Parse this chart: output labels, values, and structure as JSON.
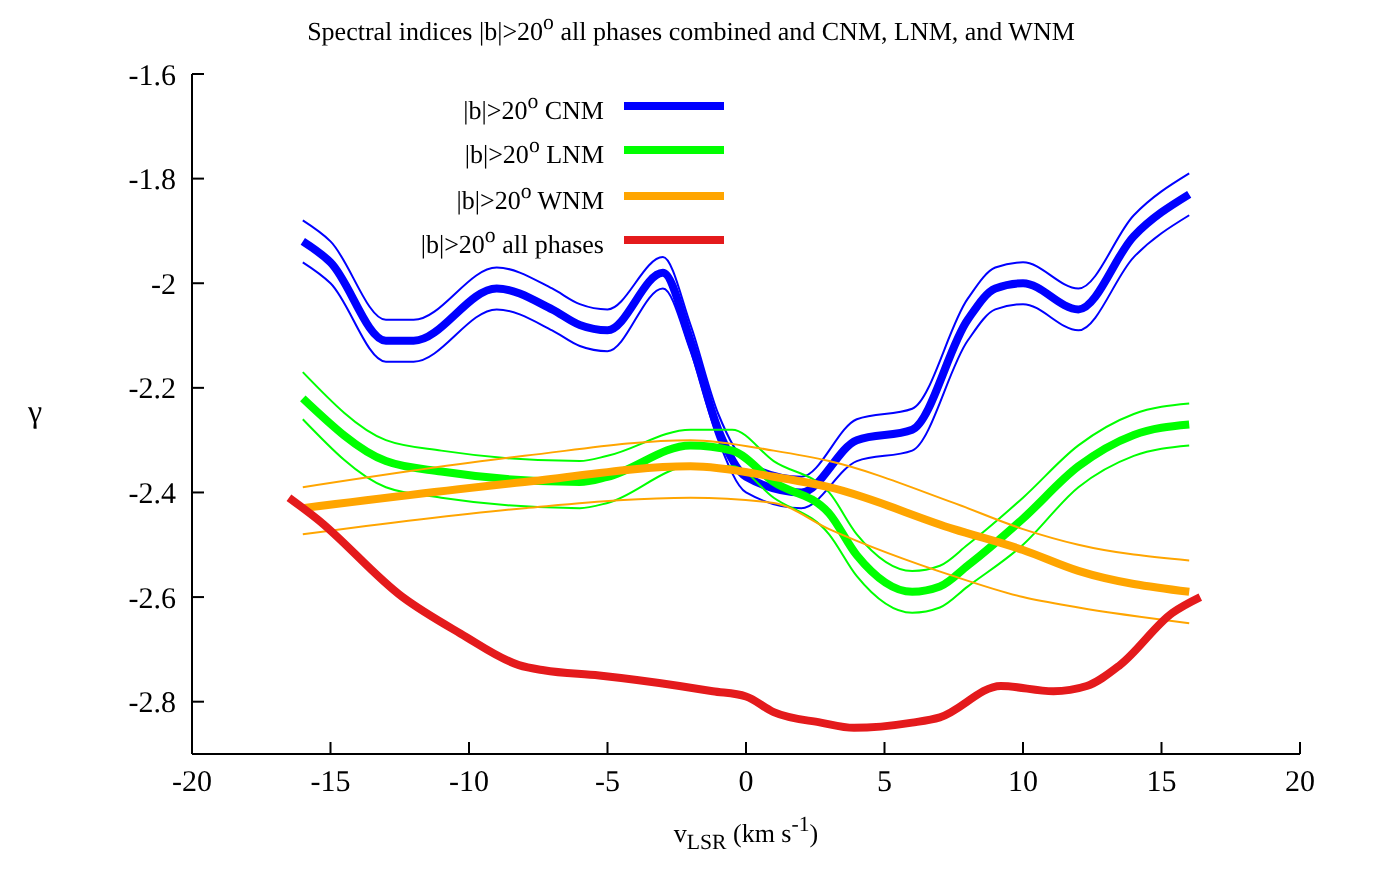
{
  "chart_data": {
    "type": "line",
    "title": "Spectral indices |b|>20$^{o}$ all phases combined and CNM, LNM, and WNM",
    "xlabel": "v$_{LSR}$ (km s$^{-1}$)",
    "ylabel": "γ",
    "xlim": [
      -20,
      20
    ],
    "xticks": [
      -20,
      -15,
      -10,
      -5,
      0,
      5,
      10,
      15,
      20
    ],
    "ylim": [
      -2.9,
      -1.6
    ],
    "yticks": [
      -2.8,
      -2.6,
      -2.4,
      -2.2,
      -2,
      -1.8,
      -1.6
    ],
    "grid": false,
    "legend": "top",
    "marker": "none",
    "line_style": "solid",
    "series": [
      {
        "name": "|b|>20$^{o}$ CNM",
        "color": "#0000ff",
        "x": [
          -16,
          -15,
          -13,
          -12,
          -9,
          -7,
          -6,
          -5,
          -3,
          -2,
          -1,
          0,
          2,
          4,
          6,
          8,
          9,
          10,
          12,
          14,
          16
        ],
        "values": [
          -1.92,
          -1.96,
          -2.11,
          -2.11,
          -2.01,
          -2.05,
          -2.08,
          -2.09,
          -1.98,
          -2.11,
          -2.28,
          -2.37,
          -2.4,
          -2.3,
          -2.28,
          -2.07,
          -2.01,
          -2.0,
          -2.05,
          -1.91,
          -1.83
        ]
      },
      {
        "color": "#0000ff",
        "x": [
          -16,
          -15,
          -13,
          -12,
          -9,
          -7,
          -6,
          -5,
          -3,
          -2,
          -1,
          0,
          2,
          4,
          6,
          8,
          9,
          10,
          12,
          14,
          16
        ],
        "values": [
          -1.96,
          -2.0,
          -2.15,
          -2.15,
          -2.05,
          -2.09,
          -2.12,
          -2.13,
          -2.01,
          -2.13,
          -2.3,
          -2.4,
          -2.43,
          -2.34,
          -2.32,
          -2.11,
          -2.05,
          -2.04,
          -2.09,
          -1.95,
          -1.87
        ]
      },
      {
        "color": "#0000ff",
        "x": [
          -16,
          -15,
          -13,
          -12,
          -9,
          -7,
          -6,
          -5,
          -3,
          -2,
          -1,
          0,
          2,
          4,
          6,
          8,
          9,
          10,
          12,
          14,
          16
        ],
        "values": [
          -1.88,
          -1.92,
          -2.07,
          -2.07,
          -1.97,
          -2.01,
          -2.04,
          -2.05,
          -1.95,
          -2.08,
          -2.25,
          -2.34,
          -2.37,
          -2.26,
          -2.24,
          -2.03,
          -1.97,
          -1.96,
          -2.01,
          -1.87,
          -1.79
        ]
      },
      {
        "name": "|b|>20$^{o}$ LNM",
        "color": "#00ff00",
        "x": [
          -16,
          -13,
          -11,
          -6,
          -5,
          -2,
          -0.5,
          1,
          3,
          4,
          6,
          7,
          8,
          10,
          12,
          14,
          16
        ],
        "values": [
          -2.22,
          -2.34,
          -2.36,
          -2.38,
          -2.37,
          -2.31,
          -2.32,
          -2.38,
          -2.44,
          -2.52,
          -2.59,
          -2.58,
          -2.54,
          -2.45,
          -2.35,
          -2.29,
          -2.27
        ]
      },
      {
        "color": "#00ff00",
        "x": [
          -16,
          -13,
          -11,
          -6,
          -5,
          -2,
          -0.5,
          1,
          3,
          4,
          6,
          7,
          8,
          10,
          12,
          14,
          16
        ],
        "values": [
          -2.26,
          -2.39,
          -2.41,
          -2.43,
          -2.42,
          -2.35,
          -2.35,
          -2.41,
          -2.48,
          -2.56,
          -2.63,
          -2.62,
          -2.58,
          -2.5,
          -2.39,
          -2.33,
          -2.31
        ]
      },
      {
        "color": "#00ff00",
        "x": [
          -16,
          -13,
          -11,
          -6,
          -5,
          -2,
          -0.5,
          1,
          3,
          4,
          6,
          7,
          8,
          10,
          12,
          14,
          16
        ],
        "values": [
          -2.17,
          -2.3,
          -2.32,
          -2.34,
          -2.33,
          -2.28,
          -2.28,
          -2.34,
          -2.4,
          -2.48,
          -2.55,
          -2.54,
          -2.5,
          -2.41,
          -2.31,
          -2.25,
          -2.23
        ]
      },
      {
        "name": "|b|>20$^{o}$ WNM",
        "color": "#ffa500",
        "x": [
          -16,
          -8,
          -2,
          1,
          3,
          7.5,
          10,
          12,
          16
        ],
        "values": [
          -2.43,
          -2.38,
          -2.35,
          -2.37,
          -2.39,
          -2.47,
          -2.51,
          -2.55,
          -2.59
        ]
      },
      {
        "color": "#ffa500",
        "x": [
          -16,
          -8,
          -2,
          1,
          3,
          7.5,
          10,
          12,
          16
        ],
        "values": [
          -2.48,
          -2.43,
          -2.41,
          -2.42,
          -2.47,
          -2.56,
          -2.6,
          -2.62,
          -2.65
        ]
      },
      {
        "color": "#ffa500",
        "x": [
          -16,
          -8,
          -2,
          1,
          3,
          7.5,
          10,
          12,
          16
        ],
        "values": [
          -2.39,
          -2.33,
          -2.3,
          -2.32,
          -2.34,
          -2.42,
          -2.47,
          -2.5,
          -2.53
        ]
      },
      {
        "name": "|b|>20$^{o}$ all phases",
        "color": "#e41a1c",
        "x": [
          -16.5,
          -15.5,
          -12.4,
          -10.3,
          -8.2,
          -7.3,
          -5.3,
          -2.4,
          -1.2,
          0,
          1,
          2.7,
          3.9,
          6,
          7,
          9.2,
          11.1,
          12.3,
          13.5,
          15.4,
          16.4
        ],
        "values": [
          -2.41,
          -2.45,
          -2.6,
          -2.67,
          -2.73,
          -2.74,
          -2.75,
          -2.77,
          -2.78,
          -2.79,
          -2.82,
          -2.84,
          -2.85,
          -2.84,
          -2.83,
          -2.77,
          -2.78,
          -2.77,
          -2.73,
          -2.63,
          -2.6
        ]
      }
    ]
  }
}
